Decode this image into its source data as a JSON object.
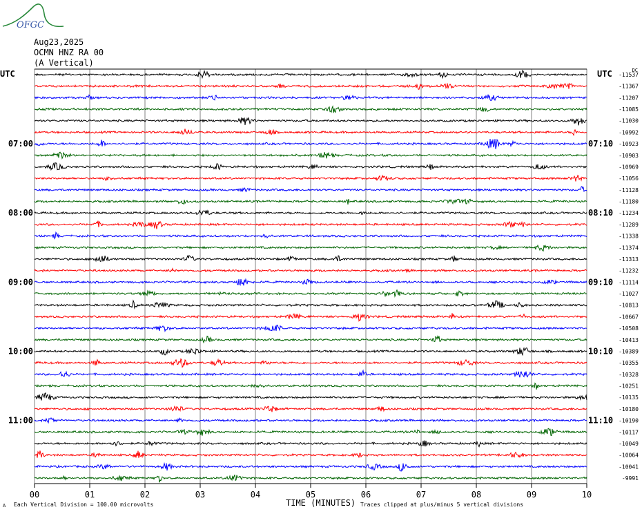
{
  "logo": {
    "text": "OFGC",
    "color": "#2a8a3c",
    "text_color": "#3a5aa8"
  },
  "header": {
    "date": "Aug23,2025",
    "station": "OCMN HNZ RA 00",
    "component": "(A Vertical)"
  },
  "utc_label_left": "UTC",
  "utc_label_right": "UTC",
  "dc_label": "DC",
  "footer": {
    "marker": "A",
    "scale_note": "Each Vertical Division =  100.00 microvolts",
    "xlabel": "TIME (MINUTES)",
    "clip_note": "Traces clipped at plus/minus 5 vertical divisions"
  },
  "colors": {
    "trace_cycle": [
      "#000000",
      "#ff0000",
      "#0000ff",
      "#006400"
    ],
    "grid": "#808080"
  },
  "chart_data": {
    "type": "line",
    "title": "OCMN HNZ RA 00 (A Vertical)",
    "xlabel": "TIME (MINUTES)",
    "x_ticks": [
      "00",
      "01",
      "02",
      "03",
      "04",
      "05",
      "06",
      "07",
      "08",
      "09",
      "10"
    ],
    "xlim": [
      0,
      10
    ],
    "left_time_labels": [
      "07:00",
      "08:00",
      "09:00",
      "10:00",
      "11:00"
    ],
    "right_time_labels": [
      "07:10",
      "08:10",
      "09:10",
      "10:10",
      "11:10"
    ],
    "time_label_rows": [
      6,
      12,
      18,
      24,
      30
    ],
    "row_dc_values": [
      "-11537",
      "-11367",
      "-11207",
      "-11085",
      "-11030",
      "-10992",
      "-10923",
      "-10903",
      "-10969",
      "-11056",
      "-11128",
      "-11180",
      "-11234",
      "-11289",
      "-11338",
      "-11374",
      "-11313",
      "-11232",
      "-11114",
      "-11027",
      "-10813",
      "-10667",
      "-10508",
      "-10413",
      "-10389",
      "-10355",
      "-10328",
      "-10251",
      "-10135",
      "-10180",
      "-10190",
      "-10117",
      "-10049",
      "-10064",
      "-10041",
      "-9991"
    ],
    "row_count": 36,
    "grid": true
  }
}
